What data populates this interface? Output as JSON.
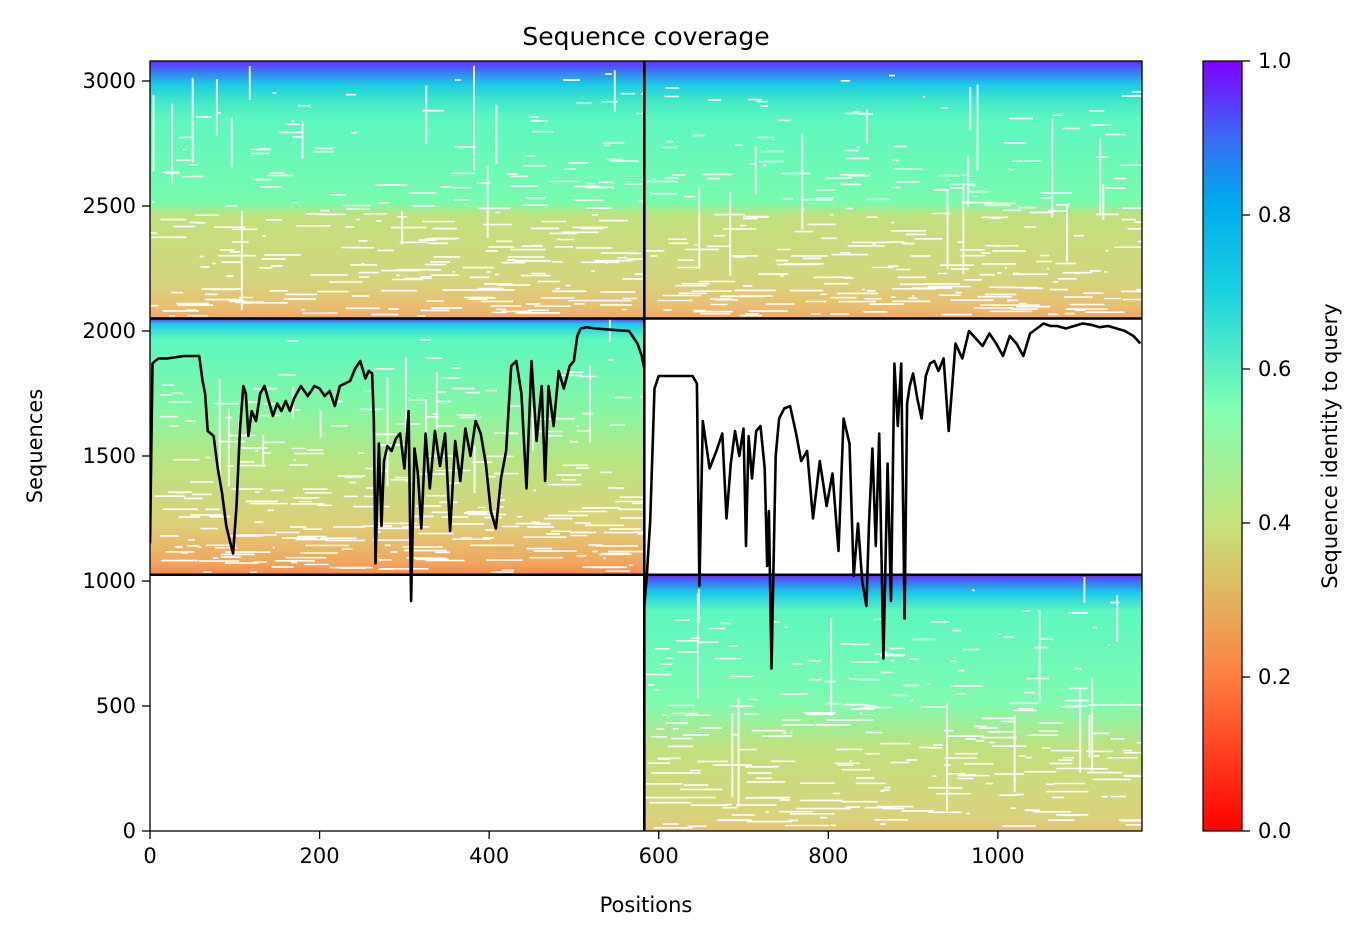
{
  "chart_data": {
    "type": "heatmap",
    "title": "Sequence coverage",
    "xlabel": "Positions",
    "ylabel": "Sequences",
    "xlim": [
      0,
      1170
    ],
    "ylim": [
      0,
      3080
    ],
    "xticks": [
      0,
      200,
      400,
      600,
      800,
      1000
    ],
    "yticks": [
      0,
      500,
      1000,
      1500,
      2000,
      2500,
      3000
    ],
    "colorbar": {
      "label": "Sequence identity to query",
      "range": [
        0,
        1
      ],
      "ticks": [
        0.0,
        0.2,
        0.4,
        0.6,
        0.8,
        1.0
      ],
      "colormap": "rainbow_r",
      "colors": [
        "#ff0000",
        "#ff7f40",
        "#c8e07a",
        "#7fffb2",
        "#00b5eb",
        "#8000ff"
      ]
    },
    "boundaries": {
      "chain_split_x": 583,
      "row_splits_y": [
        1025,
        2050
      ]
    },
    "blocks": [
      {
        "x": [
          0,
          583
        ],
        "y": [
          2050,
          3080
        ],
        "identity_top": 1.0,
        "identity_bottom": 0.25
      },
      {
        "x": [
          583,
          1170
        ],
        "y": [
          2050,
          3080
        ],
        "identity_top": 1.0,
        "identity_bottom": 0.25
      },
      {
        "x": [
          0,
          583
        ],
        "y": [
          1025,
          2050
        ],
        "identity_top": 1.0,
        "identity_bottom": 0.22
      },
      {
        "x": [
          583,
          1170
        ],
        "y": [
          0,
          1025
        ],
        "identity_top": 1.0,
        "identity_bottom": 0.3
      }
    ],
    "series": [
      {
        "x": [
          0,
          3,
          6,
          10,
          20,
          40,
          58,
          62,
          65,
          68,
          75,
          80,
          85,
          90,
          95,
          98,
          102,
          106,
          110,
          113,
          116,
          120,
          125,
          130,
          135,
          140,
          145,
          150,
          155,
          160,
          165,
          170,
          178,
          186,
          194,
          200,
          206,
          212,
          218,
          224,
          230,
          236,
          242,
          248,
          254,
          258,
          262,
          264,
          266,
          270,
          273,
          276,
          280,
          285,
          290,
          295,
          300,
          305,
          308,
          312,
          316,
          320,
          325,
          330,
          336,
          342,
          348,
          354,
          360,
          366,
          372,
          378,
          384,
          390,
          396,
          402,
          408,
          414,
          420,
          426,
          432,
          438,
          444,
          450,
          456,
          462,
          466,
          470,
          476,
          482,
          488,
          495,
          500,
          504,
          508,
          515,
          525,
          545,
          565,
          575,
          580,
          583
        ],
        "y": [
          1150,
          1870,
          1880,
          1890,
          1890,
          1900,
          1900,
          1800,
          1750,
          1600,
          1580,
          1450,
          1350,
          1220,
          1150,
          1110,
          1300,
          1600,
          1780,
          1750,
          1580,
          1680,
          1640,
          1750,
          1780,
          1720,
          1660,
          1710,
          1680,
          1720,
          1680,
          1730,
          1780,
          1740,
          1780,
          1770,
          1740,
          1760,
          1700,
          1780,
          1790,
          1800,
          1850,
          1880,
          1810,
          1840,
          1830,
          1650,
          1070,
          1550,
          1220,
          1480,
          1540,
          1520,
          1570,
          1590,
          1450,
          1680,
          920,
          1530,
          1430,
          1210,
          1590,
          1370,
          1600,
          1460,
          1590,
          1200,
          1560,
          1400,
          1610,
          1500,
          1640,
          1590,
          1470,
          1280,
          1210,
          1410,
          1520,
          1860,
          1880,
          1750,
          1370,
          1880,
          1560,
          1780,
          1400,
          1780,
          1620,
          1840,
          1770,
          1860,
          1880,
          1980,
          2010,
          2015,
          2010,
          2005,
          2000,
          1950,
          1900,
          1850
        ]
      },
      {
        "x": [
          583,
          586,
          590,
          595,
          600,
          610,
          625,
          640,
          645,
          648,
          652,
          660,
          668,
          675,
          680,
          685,
          690,
          695,
          700,
          703,
          706,
          710,
          715,
          720,
          725,
          728,
          730,
          733,
          738,
          742,
          748,
          755,
          762,
          768,
          775,
          782,
          790,
          798,
          805,
          812,
          818,
          825,
          830,
          835,
          840,
          845,
          848,
          852,
          856,
          860,
          865,
          870,
          874,
          878,
          882,
          886,
          890,
          893,
          896,
          900,
          905,
          910,
          915,
          920,
          925,
          930,
          936,
          942,
          950,
          958,
          966,
          974,
          982,
          990,
          998,
          1006,
          1014,
          1022,
          1030,
          1038,
          1046,
          1054,
          1062,
          1070,
          1080,
          1090,
          1100,
          1110,
          1120,
          1130,
          1140,
          1150,
          1160,
          1168
        ],
        "y": [
          900,
          1020,
          1240,
          1770,
          1820,
          1820,
          1820,
          1820,
          1790,
          980,
          1640,
          1450,
          1520,
          1590,
          1250,
          1470,
          1600,
          1500,
          1610,
          1140,
          1580,
          1410,
          1600,
          1620,
          1450,
          1060,
          1280,
          650,
          1500,
          1650,
          1690,
          1700,
          1590,
          1480,
          1520,
          1250,
          1480,
          1300,
          1430,
          1120,
          1650,
          1550,
          1020,
          1230,
          1000,
          900,
          1230,
          1530,
          1140,
          1590,
          690,
          1470,
          920,
          1870,
          1620,
          1870,
          850,
          1710,
          1780,
          1830,
          1730,
          1650,
          1820,
          1870,
          1880,
          1840,
          1890,
          1600,
          1950,
          1890,
          2000,
          1970,
          1940,
          1990,
          1950,
          1900,
          1980,
          1950,
          1900,
          1990,
          2010,
          2030,
          2020,
          2020,
          2010,
          2020,
          2030,
          2025,
          2015,
          2020,
          2010,
          2000,
          1980,
          1950
        ]
      }
    ]
  }
}
